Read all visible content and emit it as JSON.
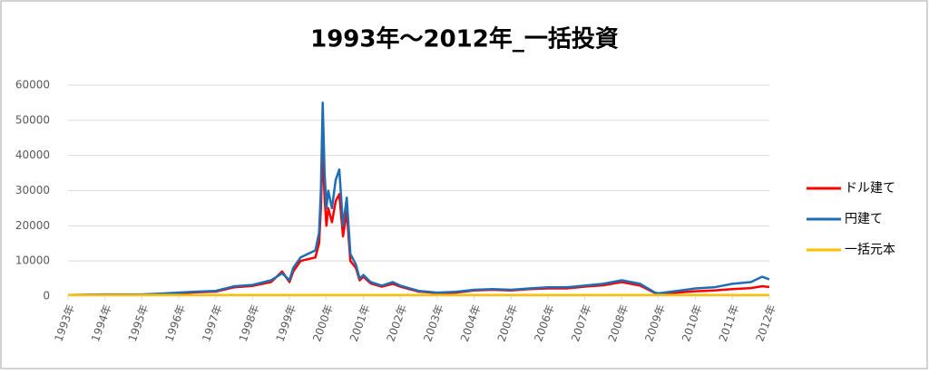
{
  "chart_data": {
    "type": "line",
    "title": "1993年〜2012年_一括投資",
    "x": [
      1993,
      1993.5,
      1994,
      1994.5,
      1995,
      1995.5,
      1996,
      1996.5,
      1997,
      1997.5,
      1998,
      1998.5,
      1998.8,
      1999,
      1999.1,
      1999.3,
      1999.5,
      1999.7,
      1999.8,
      1999.85,
      1999.9,
      1999.95,
      2000,
      2000.05,
      2000.15,
      2000.25,
      2000.35,
      2000.45,
      2000.55,
      2000.65,
      2000.8,
      2000.9,
      2001,
      2001.2,
      2001.5,
      2001.8,
      2002,
      2002.5,
      2003,
      2003.5,
      2004,
      2004.5,
      2005,
      2005.5,
      2006,
      2006.5,
      2007,
      2007.5,
      2008,
      2008.5,
      2008.9,
      2009,
      2009.5,
      2010,
      2010.5,
      2011,
      2011.5,
      2011.8,
      2012
    ],
    "series": [
      {
        "name": "ドル建て",
        "color": "#ff0000",
        "values": [
          300,
          350,
          450,
          450,
          450,
          600,
          850,
          1100,
          1300,
          2500,
          2900,
          4000,
          7000,
          4000,
          7000,
          10000,
          10500,
          11000,
          15000,
          25000,
          42000,
          28000,
          20000,
          25000,
          21000,
          27000,
          29000,
          17000,
          24000,
          10000,
          8000,
          4500,
          5500,
          3600,
          2700,
          3500,
          2700,
          1300,
          900,
          1000,
          1600,
          1800,
          1600,
          2000,
          2200,
          2200,
          2700,
          3100,
          4000,
          3000,
          900,
          700,
          1000,
          1400,
          1600,
          2000,
          2300,
          2800,
          2600
        ]
      },
      {
        "name": "円建て",
        "color": "#1f6eb4",
        "values": [
          300,
          400,
          500,
          500,
          500,
          700,
          1000,
          1300,
          1500,
          2800,
          3200,
          4500,
          6500,
          4500,
          8000,
          11000,
          12000,
          13000,
          18000,
          30000,
          55000,
          35000,
          25000,
          30000,
          25000,
          33000,
          36000,
          20000,
          28000,
          12000,
          9000,
          5000,
          6000,
          4000,
          3000,
          4000,
          3000,
          1500,
          1000,
          1200,
          1800,
          2000,
          1800,
          2200,
          2500,
          2500,
          3000,
          3500,
          4500,
          3500,
          1000,
          800,
          1500,
          2200,
          2500,
          3500,
          4000,
          5500,
          4800
        ]
      },
      {
        "name": "一括元本",
        "color": "#ffc000",
        "values": [
          300,
          300,
          300,
          300,
          300,
          300,
          300,
          300,
          300,
          300,
          300,
          300,
          300,
          300,
          300,
          300,
          300,
          300,
          300,
          300,
          300,
          300,
          300,
          300,
          300,
          300,
          300,
          300,
          300,
          300,
          300,
          300,
          300,
          300,
          300,
          300,
          300,
          300,
          300,
          300,
          300,
          300,
          300,
          300,
          300,
          300,
          300,
          300,
          300,
          300,
          300,
          300,
          300,
          300,
          300,
          300,
          300,
          300,
          300
        ]
      }
    ],
    "xlim": [
      1993,
      2012
    ],
    "xticks": [
      {
        "value": 1993,
        "label": "1993年"
      },
      {
        "value": 1994,
        "label": "1994年"
      },
      {
        "value": 1995,
        "label": "1995年"
      },
      {
        "value": 1996,
        "label": "1996年"
      },
      {
        "value": 1997,
        "label": "1997年"
      },
      {
        "value": 1998,
        "label": "1998年"
      },
      {
        "value": 1999,
        "label": "1999年"
      },
      {
        "value": 2000,
        "label": "2000年"
      },
      {
        "value": 2001,
        "label": "2001年"
      },
      {
        "value": 2002,
        "label": "2002年"
      },
      {
        "value": 2003,
        "label": "2003年"
      },
      {
        "value": 2004,
        "label": "2004年"
      },
      {
        "value": 2005,
        "label": "2005年"
      },
      {
        "value": 2006,
        "label": "2006年"
      },
      {
        "value": 2007,
        "label": "2007年"
      },
      {
        "value": 2008,
        "label": "2008年"
      },
      {
        "value": 2009,
        "label": "2009年"
      },
      {
        "value": 2010,
        "label": "2010年"
      },
      {
        "value": 2011,
        "label": "2011年"
      },
      {
        "value": 2012,
        "label": "2012年"
      }
    ],
    "ylim": [
      0,
      60000
    ],
    "yticks": [
      0,
      10000,
      20000,
      30000,
      40000,
      50000,
      60000
    ],
    "grid": true,
    "legend": "right"
  }
}
